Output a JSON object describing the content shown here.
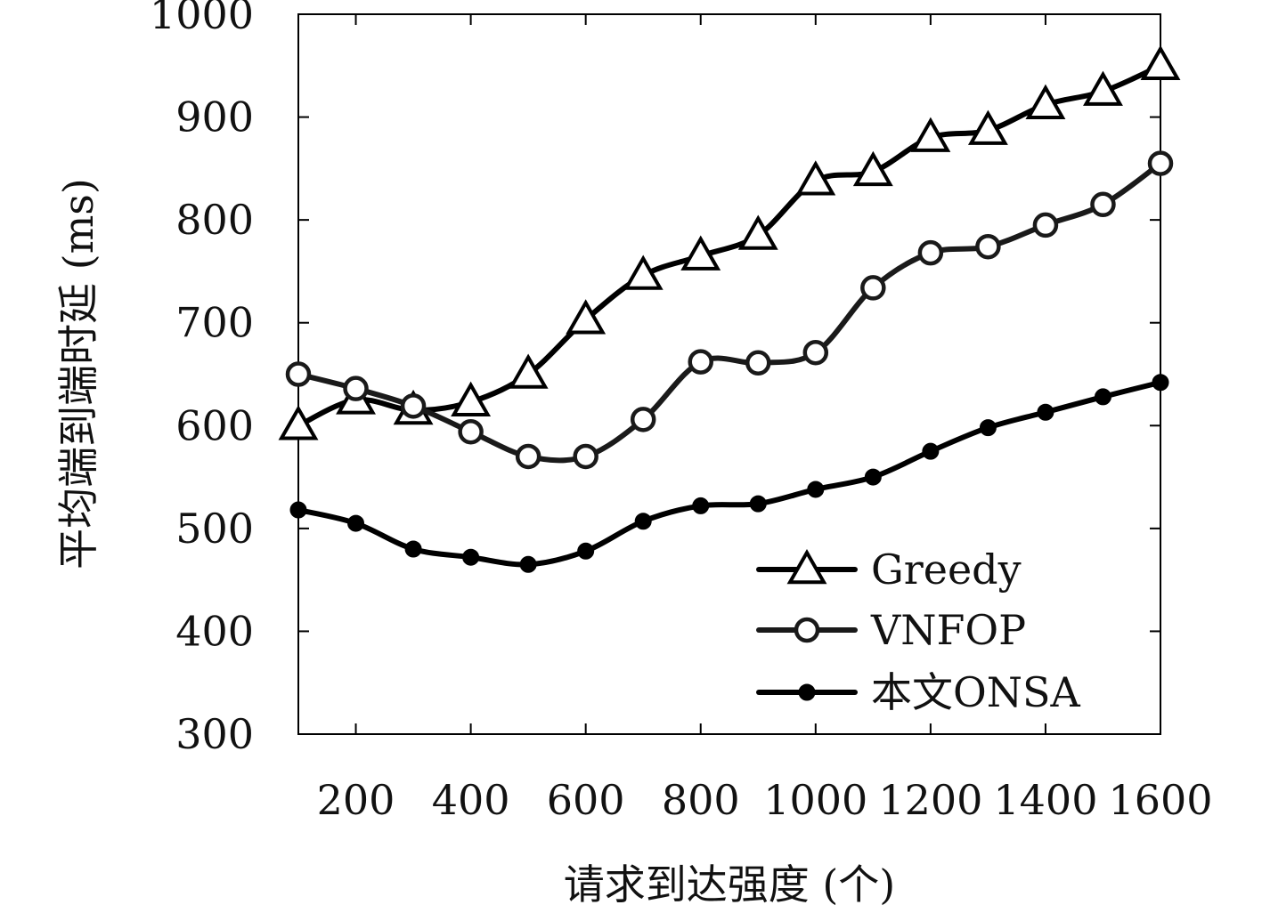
{
  "chart_data": {
    "type": "line",
    "xlabel": "请求到达强度 (个)",
    "ylabel": "平均端到端时延 (ms)",
    "xlim": [
      100,
      1600
    ],
    "ylim": [
      300,
      1000
    ],
    "xticks": [
      200,
      400,
      600,
      800,
      1000,
      1200,
      1400,
      1600
    ],
    "yticks": [
      300,
      400,
      500,
      600,
      700,
      800,
      900,
      1000
    ],
    "grid": false,
    "legend_position": "bottom-right",
    "x": [
      100,
      200,
      300,
      400,
      500,
      600,
      700,
      800,
      900,
      1000,
      1100,
      1200,
      1300,
      1400,
      1500,
      1600
    ],
    "series": [
      {
        "name": "Greedy",
        "marker": "triangle",
        "color": "#000000",
        "values": [
          600,
          625,
          615,
          623,
          650,
          703,
          746,
          765,
          785,
          838,
          847,
          880,
          887,
          912,
          925,
          950
        ]
      },
      {
        "name": "VNFOP",
        "marker": "circle",
        "color": "#1a1a1a",
        "values": [
          650,
          636,
          619,
          594,
          570,
          570,
          606,
          662,
          661,
          671,
          734,
          768,
          774,
          795,
          815,
          855
        ]
      },
      {
        "name": "本文ONSA",
        "marker": "dot",
        "color": "#000000",
        "values": [
          518,
          505,
          480,
          472,
          465,
          478,
          507,
          522,
          524,
          538,
          550,
          575,
          598,
          613,
          628,
          642
        ]
      }
    ]
  }
}
